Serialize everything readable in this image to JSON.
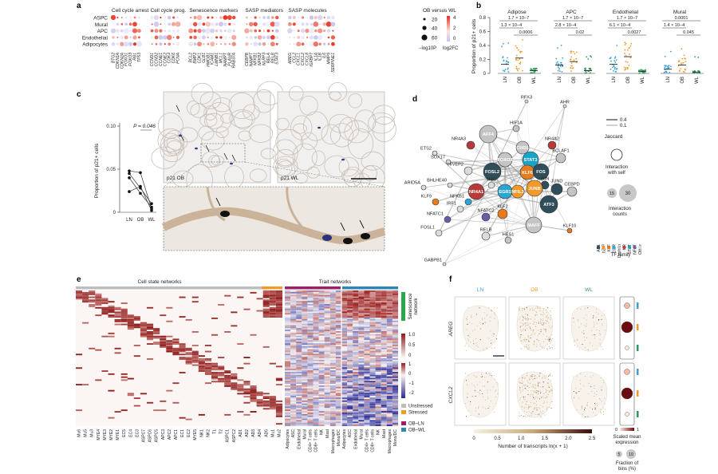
{
  "panel_letters": [
    "a",
    "b",
    "c",
    "d",
    "e",
    "f"
  ],
  "a": {
    "rows": [
      "ASPC",
      "Mural",
      "APC",
      "Endothelial",
      "Adipocytes"
    ],
    "groups": [
      {
        "title": "Cell cycle arrest",
        "genes": [
          "BTG2",
          "CDKN1A",
          "CDKN2A",
          "FOXO1",
          "FOXO3",
          "RB1",
          "TP53"
        ]
      },
      {
        "title": "Cell cycle prog.",
        "genes": [
          "CCND1",
          "CCND2",
          "CCNE1",
          "CCNE2",
          "CDK4",
          "CDK6",
          "PCNA"
        ]
      },
      {
        "title": "Senescence markers",
        "genes": [
          "BCL2",
          "BMP2",
          "CDK1",
          "GLB1",
          "HMGB1",
          "ICAM1",
          "LMNB1",
          "MCL1",
          "NAMPT",
          "PLAUR",
          "RAB37A"
        ]
      },
      {
        "title": "SASP mediators",
        "genes": [
          "CEBPB",
          "NAMPT",
          "NFKB1",
          "NFKB2",
          "NLRP3",
          "RELA",
          "RELB",
          "STAT3"
        ]
      },
      {
        "title": "SASP molecules",
        "genes": [
          "AREG",
          "CCL2",
          "CXCL1",
          "CXCL2",
          "CXCL8",
          "IGFBP7",
          "IL1A",
          "IL1B",
          "IL6",
          "MMP9",
          "SERPINE1"
        ]
      }
    ],
    "legend_title": "OB versus WL",
    "size_values": [
      "20",
      "40",
      "60"
    ],
    "size_label": "−log10P",
    "color_ticks": [
      "4",
      "2",
      "0"
    ],
    "color_label": "log2FC",
    "colors": {
      "high": "#e3301f",
      "low": "#c7c1ef"
    }
  },
  "b": {
    "ylabel": "Proportion of p21+ cells",
    "yticks": [
      "0",
      "0.2",
      "0.4",
      "0.6",
      "0.8"
    ],
    "panels": [
      {
        "title": "Adipose",
        "p_top": "1.7 × 10−7",
        "p_mid": "1.3 × 10−4",
        "p_low": "0.0006"
      },
      {
        "title": "APC",
        "p_top": "1.7 × 10−7",
        "p_mid": "2.8 × 10−4",
        "p_low": "0.02"
      },
      {
        "title": "Endothelial",
        "p_top": "1.7 × 10−7",
        "p_mid": "6.1 × 10−4",
        "p_low": "0.0027"
      },
      {
        "title": "Mural",
        "p_top": "0.0001",
        "p_mid": "1.4 × 10−4",
        "p_low": "0.045"
      }
    ],
    "groups": [
      "LN",
      "OB",
      "WL"
    ],
    "colors": {
      "LN": "#3aa0d8",
      "OB": "#f39a2b",
      "WL": "#2e9a5d"
    }
  },
  "c": {
    "ylabel": "Proportion of p21+ cells",
    "yticks": [
      "0",
      "0.05",
      "0.10"
    ],
    "xticks": [
      "LN",
      "OB",
      "WL"
    ],
    "pvalue": "P = 0.046",
    "label_ob": "p21 OB",
    "label_wl": "p21 WL"
  },
  "d": {
    "title_left": "Cell state networks",
    "title_right": "Trait networks",
    "colorbar1": [
      "1.0",
      "0.5",
      "0"
    ],
    "colorbar2": [
      "1",
      "0",
      "−1",
      "−2"
    ],
    "senescence_label": "Senescence network",
    "legend": [
      {
        "label": "Unstressed",
        "color": "#bdbdbd"
      },
      {
        "label": "Stressed",
        "color": "#f39a2b"
      },
      {
        "label": "OB–LN",
        "color": "#a01d6a"
      },
      {
        "label": "OB–WL",
        "color": "#2d86b4"
      }
    ],
    "col_labels_left": [
      "Mu6",
      "Mu5",
      "Mu3",
      "MYE4",
      "MYE3",
      "MYE2",
      "MYE1",
      "EC5",
      "EC4",
      "EC3",
      "ASPC7",
      "ASPC6",
      "ASPC5",
      "APC3",
      "APC2",
      "APC1",
      "EC1",
      "EC2",
      "MYE5",
      "NK1",
      "NK2",
      "T1",
      "T2",
      "ASPC1",
      "ASPC2",
      "AD1",
      "AD2",
      "AD3",
      "AD4",
      "AD5",
      "Mu1",
      "Mu2"
    ],
    "col_labels_right": [
      "Adipocytes",
      "ASC",
      "Endothelial",
      "Mural",
      "CD4+ T cells",
      "CD8+ T cells",
      "NK",
      "Mast",
      "Macrophages",
      "Mono/DC",
      "Adipocytes",
      "ASC",
      "Endothelial",
      "Mural",
      "CD4+ T cells",
      "CD8+ T cells",
      "NK",
      "Mast",
      "Macrophages",
      "Mono/DC"
    ]
  },
  "e": {
    "nodes": [
      "RFX3",
      "AHR",
      "HIF1A",
      "AFF4",
      "NR4A3",
      "CHD1",
      "NR4A2",
      "ETS2",
      "SOX17",
      "FOXO3",
      "STAT3",
      "BCLAF1",
      "HIVEP2",
      "FOSL2",
      "KLF6",
      "FOS",
      "BHLHE40",
      "JUN",
      "JUND",
      "ARID5A",
      "MYC",
      "EGR1",
      "NFIL3",
      "CEBPD",
      "NR4A1",
      "KLF9",
      "ATF3",
      "JUNB",
      "IRF1",
      "NFKB1",
      "KLF2",
      "NFATC2",
      "NFATC1",
      "MAFF",
      "FOSL1",
      "RELB",
      "HES1",
      "KLF10",
      "GABPB1"
    ],
    "jaccard_title": "Jaccard",
    "jaccard_values": [
      "0.4",
      "0.1"
    ],
    "self_label": "Interaction with self",
    "counts_values": [
      "15",
      "30"
    ],
    "counts_label": "Interaction counts",
    "tf_families": [
      {
        "name": "AP1",
        "color": "#2f4e5a"
      },
      {
        "name": "bZIP",
        "color": "#f39a2b"
      },
      {
        "name": "KLF",
        "color": "#e97b1f"
      },
      {
        "name": "EGR",
        "color": "#2aa6d5"
      },
      {
        "name": "Orphan",
        "color": "#c4c4c4"
      },
      {
        "name": "NR",
        "color": "#b63a3a"
      },
      {
        "name": "STAT",
        "color": "#19a3c9"
      },
      {
        "name": "NFAT",
        "color": "#6b5ba8"
      },
      {
        "name": "Other",
        "color": "#dcdcdc"
      }
    ],
    "tf_family_label": "TF family"
  },
  "f": {
    "columns": [
      "LN",
      "OB",
      "WL"
    ],
    "column_colors": [
      "#3aa0d8",
      "#f39a2b",
      "#2e9a5d"
    ],
    "rows": [
      "AREG",
      "CXCL2"
    ],
    "colorbar_ticks": [
      "0",
      "0.5",
      "1.0",
      "1.5",
      "2.0",
      "2.5"
    ],
    "colorbar_label": "Number of transcripts ln(x + 1)",
    "scaled_ticks": [
      "0",
      "1"
    ],
    "scaled_label": "Scaled mean expression",
    "fraction_values": [
      "5",
      "10"
    ],
    "fraction_label": "Fraction of bins (%)"
  }
}
